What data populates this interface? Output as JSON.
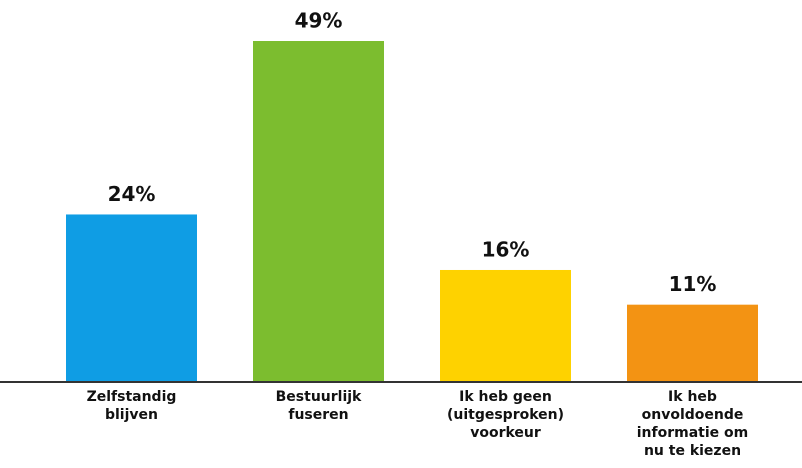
{
  "chart_data": {
    "type": "bar",
    "categories": [
      "Zelfstandig\nblijven",
      "Bestuurlijk\nfuseren",
      "Ik heb geen\n(uitgesproken)\nvoorkeur",
      "Ik heb\nonvoldoende\ninformatie om\nnu te kiezen"
    ],
    "values": [
      24,
      49,
      16,
      11
    ],
    "value_labels": [
      "24%",
      "49%",
      "16%",
      "11%"
    ],
    "colors": [
      "#0f9de4",
      "#7cbd2f",
      "#fed200",
      "#f39313"
    ]
  }
}
